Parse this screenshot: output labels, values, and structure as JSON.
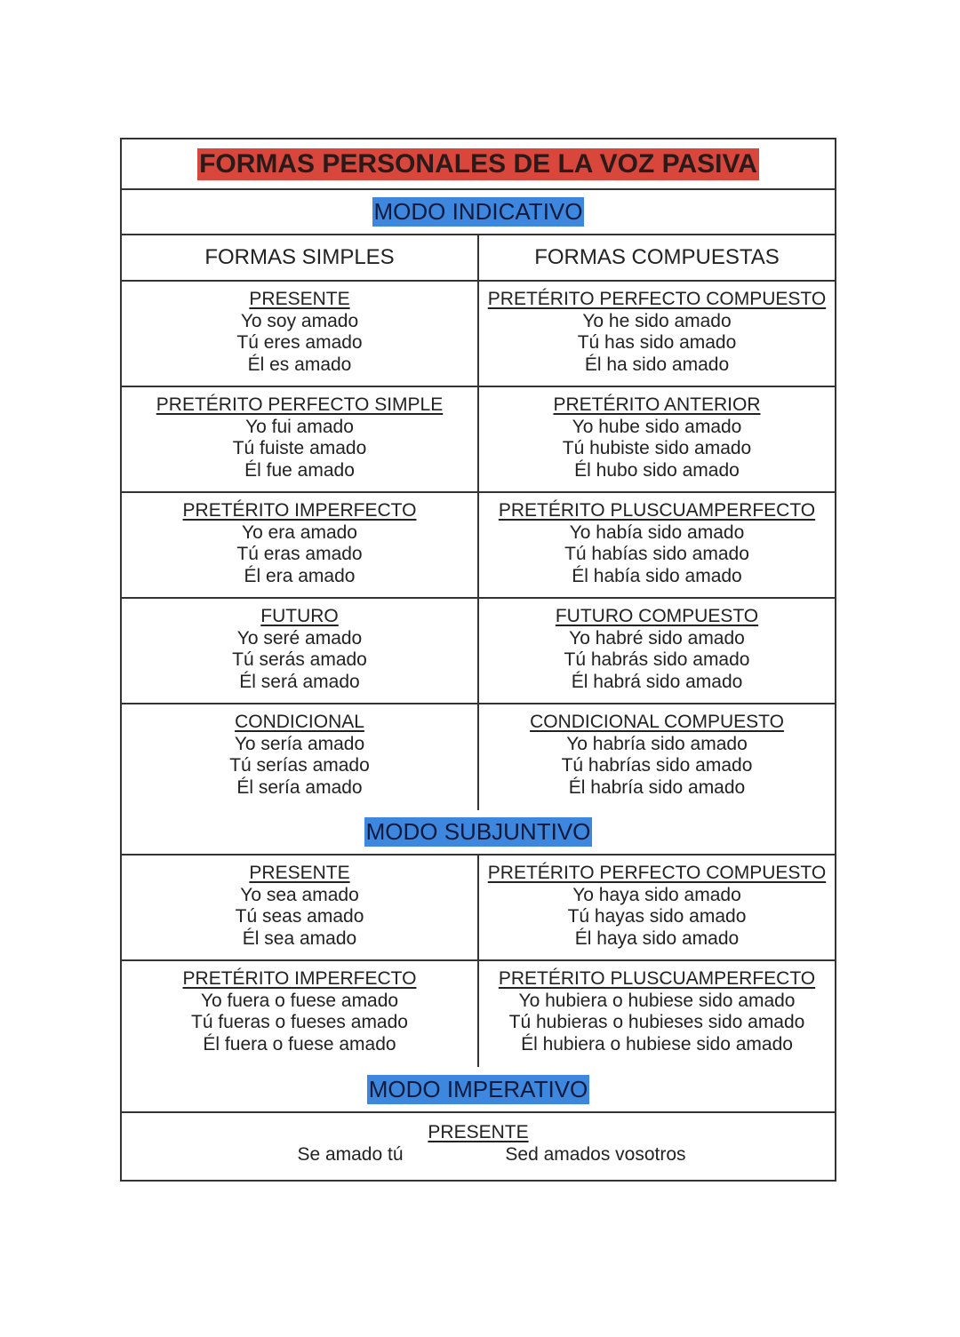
{
  "title": "FORMAS PERSONALES DE LA VOZ PASIVA",
  "indicativo": {
    "heading": "MODO INDICATIVO",
    "col_simple": "FORMAS SIMPLES",
    "col_compuesta": "FORMAS COMPUESTAS",
    "rows": [
      [
        {
          "tense": "PRESENTE",
          "lines": [
            "Yo soy amado",
            "Tú eres amado",
            "Él es amado"
          ]
        },
        {
          "tense": "PRETÉRITO PERFECTO COMPUESTO",
          "lines": [
            "Yo he sido amado",
            "Tú has sido amado",
            "Él ha sido amado"
          ]
        }
      ],
      [
        {
          "tense": "PRETÉRITO PERFECTO SIMPLE",
          "lines": [
            "Yo fui amado",
            "Tú fuiste amado",
            "Él fue amado"
          ]
        },
        {
          "tense": "PRETÉRITO ANTERIOR",
          "lines": [
            "Yo hube sido amado",
            "Tú hubiste sido amado",
            "Él hubo sido amado"
          ]
        }
      ],
      [
        {
          "tense": "PRETÉRITO IMPERFECTO",
          "lines": [
            "Yo era amado",
            "Tú eras amado",
            "Él era amado"
          ]
        },
        {
          "tense": "PRETÉRITO PLUSCUAMPERFECTO",
          "lines": [
            "Yo había sido amado",
            "Tú habías sido amado",
            "Él había sido amado"
          ]
        }
      ],
      [
        {
          "tense": "FUTURO",
          "lines": [
            "Yo seré amado",
            "Tú serás amado",
            "Él será amado"
          ]
        },
        {
          "tense": "FUTURO COMPUESTO",
          "lines": [
            "Yo habré sido amado",
            "Tú habrás sido amado",
            "Él habrá sido amado"
          ]
        }
      ],
      [
        {
          "tense": "CONDICIONAL",
          "lines": [
            "Yo sería amado",
            "Tú serías amado",
            "Él sería amado"
          ]
        },
        {
          "tense": "CONDICIONAL COMPUESTO",
          "lines": [
            "Yo habría sido amado",
            "Tú habrías sido amado",
            "Él habría sido amado"
          ]
        }
      ]
    ]
  },
  "subjuntivo": {
    "heading": "MODO SUBJUNTIVO",
    "rows": [
      [
        {
          "tense": "PRESENTE",
          "lines": [
            "Yo sea amado",
            "Tú seas amado",
            "Él sea amado"
          ]
        },
        {
          "tense": "PRETÉRITO PERFECTO COMPUESTO",
          "lines": [
            "Yo haya sido amado",
            "Tú hayas sido amado",
            "Él haya sido amado"
          ]
        }
      ],
      [
        {
          "tense": "PRETÉRITO IMPERFECTO",
          "lines": [
            "Yo fuera o fuese amado",
            "Tú fueras o fueses amado",
            "Él fuera o fuese amado"
          ]
        },
        {
          "tense": "PRETÉRITO PLUSCUAMPERFECTO",
          "lines": [
            "Yo hubiera o hubiese sido amado",
            "Tú hubieras o hubieses sido amado",
            "Él hubiera o hubiese sido amado"
          ]
        }
      ]
    ]
  },
  "imperativo": {
    "heading": "MODO IMPERATIVO",
    "tense": "PRESENTE",
    "forms": [
      "Se amado tú",
      "Sed amados vosotros"
    ]
  },
  "colors": {
    "title_highlight": "#d9473c",
    "modo_highlight": "#3e87de"
  }
}
